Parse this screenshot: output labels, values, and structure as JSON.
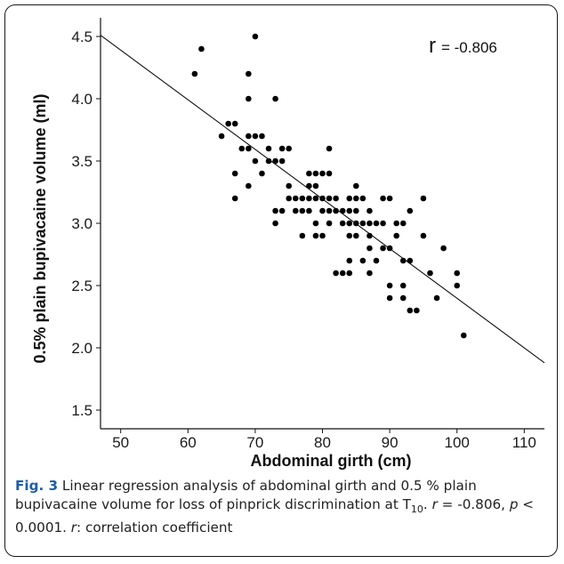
{
  "chart_data": {
    "type": "scatter",
    "xlabel": "Abdominal girth (cm)",
    "ylabel": "0.5% plain bupivacaine volume (ml)",
    "xlim": [
      47,
      113
    ],
    "ylim": [
      1.35,
      4.65
    ],
    "x_ticks": [
      50,
      60,
      70,
      80,
      90,
      100,
      110
    ],
    "y_ticks": [
      1.5,
      2.0,
      2.5,
      3.0,
      3.5,
      4.0,
      4.5
    ],
    "x_tick_labels": [
      "50",
      "60",
      "70",
      "80",
      "90",
      "100",
      "110"
    ],
    "y_tick_labels": [
      "1.5",
      "2.0",
      "2.5",
      "3.0",
      "3.5",
      "4.0",
      "4.5"
    ],
    "annotation": {
      "r_symbol": "r",
      "r_value": "= -0.806"
    },
    "regression_line": {
      "x": [
        47,
        113
      ],
      "y": [
        4.51,
        1.88
      ]
    },
    "points": [
      [
        61,
        4.2
      ],
      [
        62,
        4.4
      ],
      [
        65,
        3.7
      ],
      [
        66,
        3.8
      ],
      [
        67,
        3.8
      ],
      [
        67,
        3.4
      ],
      [
        67,
        3.2
      ],
      [
        68,
        3.6
      ],
      [
        69,
        4.2
      ],
      [
        69,
        4.0
      ],
      [
        69,
        3.7
      ],
      [
        69,
        3.6
      ],
      [
        69,
        3.3
      ],
      [
        70,
        4.5
      ],
      [
        70,
        3.7
      ],
      [
        70,
        3.5
      ],
      [
        71,
        3.7
      ],
      [
        71,
        3.4
      ],
      [
        72,
        3.6
      ],
      [
        72,
        3.5
      ],
      [
        73,
        4.0
      ],
      [
        73,
        3.5
      ],
      [
        73,
        3.1
      ],
      [
        73,
        3.0
      ],
      [
        74,
        3.5
      ],
      [
        74,
        3.6
      ],
      [
        74,
        3.1
      ],
      [
        75,
        3.6
      ],
      [
        75,
        3.3
      ],
      [
        75,
        3.2
      ],
      [
        76,
        3.1
      ],
      [
        76,
        3.2
      ],
      [
        77,
        3.2
      ],
      [
        77,
        3.1
      ],
      [
        77,
        2.9
      ],
      [
        78,
        3.4
      ],
      [
        78,
        3.3
      ],
      [
        78,
        3.2
      ],
      [
        78,
        3.1
      ],
      [
        79,
        3.4
      ],
      [
        79,
        3.3
      ],
      [
        79,
        3.2
      ],
      [
        79,
        3.0
      ],
      [
        79,
        2.9
      ],
      [
        80,
        3.4
      ],
      [
        80,
        3.2
      ],
      [
        80,
        3.1
      ],
      [
        80,
        2.9
      ],
      [
        81,
        3.4
      ],
      [
        81,
        3.2
      ],
      [
        81,
        3.6
      ],
      [
        81,
        3.1
      ],
      [
        81,
        3.0
      ],
      [
        82,
        3.2
      ],
      [
        82,
        3.1
      ],
      [
        82,
        2.6
      ],
      [
        83,
        3.1
      ],
      [
        83,
        3.0
      ],
      [
        83,
        2.6
      ],
      [
        84,
        3.2
      ],
      [
        84,
        3.1
      ],
      [
        84,
        3.0
      ],
      [
        84,
        2.9
      ],
      [
        84,
        2.7
      ],
      [
        84,
        2.6
      ],
      [
        85,
        3.3
      ],
      [
        85,
        3.2
      ],
      [
        85,
        3.1
      ],
      [
        85,
        3.0
      ],
      [
        85,
        2.9
      ],
      [
        86,
        3.2
      ],
      [
        86,
        3.0
      ],
      [
        86,
        2.7
      ],
      [
        87,
        3.1
      ],
      [
        87,
        3.0
      ],
      [
        87,
        2.9
      ],
      [
        87,
        2.8
      ],
      [
        87,
        2.6
      ],
      [
        88,
        3.0
      ],
      [
        88,
        2.7
      ],
      [
        89,
        3.2
      ],
      [
        89,
        3.0
      ],
      [
        89,
        2.8
      ],
      [
        90,
        3.2
      ],
      [
        90,
        2.8
      ],
      [
        90,
        2.5
      ],
      [
        90,
        2.4
      ],
      [
        91,
        3.0
      ],
      [
        91,
        2.9
      ],
      [
        92,
        3.0
      ],
      [
        92,
        2.5
      ],
      [
        92,
        2.4
      ],
      [
        92,
        2.7
      ],
      [
        93,
        3.1
      ],
      [
        93,
        2.7
      ],
      [
        93,
        2.3
      ],
      [
        94,
        2.3
      ],
      [
        95,
        3.2
      ],
      [
        95,
        2.9
      ],
      [
        96,
        2.6
      ],
      [
        97,
        2.4
      ],
      [
        98,
        2.8
      ],
      [
        100,
        2.6
      ],
      [
        100,
        2.5
      ],
      [
        101,
        2.1
      ]
    ]
  },
  "caption": {
    "fig_label": "Fig. 3",
    "text_1": " Linear regression analysis of abdominal girth and 0.5 % plain bupivacaine volume for loss of pinprick discrimination at T",
    "subscript": "10",
    "text_2": ". ",
    "r_italic_1": "r",
    "text_3": " = -0.806, ",
    "p_italic": "p",
    "text_4": " < 0.0001. ",
    "r_italic_2": "r",
    "text_5": ": correlation coefficient"
  }
}
